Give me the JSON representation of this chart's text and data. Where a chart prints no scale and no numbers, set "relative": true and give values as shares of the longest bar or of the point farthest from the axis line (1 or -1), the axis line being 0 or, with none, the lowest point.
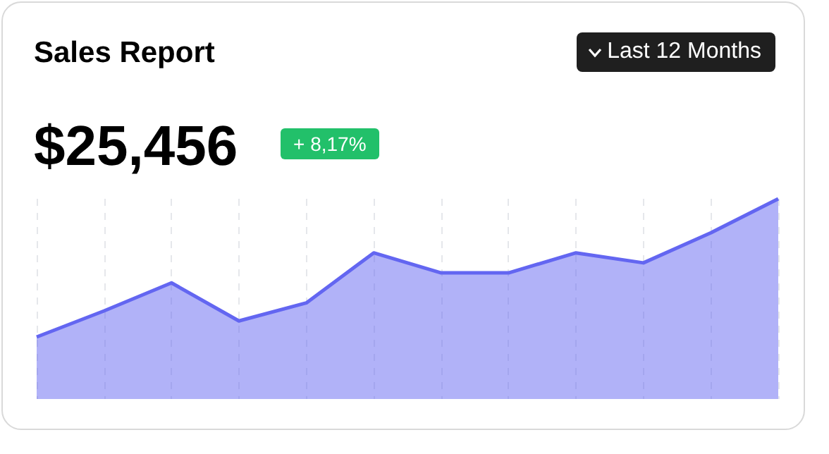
{
  "chart_data": {
    "type": "area",
    "title": "Sales Report",
    "subtitle": "$25,456",
    "annotations": [
      "+ 8,17%",
      "Last 12 Months"
    ],
    "relative": true,
    "grid": "x",
    "categories": [
      null,
      null,
      null,
      null,
      null,
      null,
      null,
      null,
      null,
      null,
      null,
      null
    ],
    "series": [
      {
        "color": "#6366f1",
        "values": [
          0.31,
          0.44,
          0.58,
          0.39,
          0.48,
          0.73,
          0.63,
          0.63,
          0.73,
          0.68,
          0.83,
          1
        ]
      }
    ]
  }
}
